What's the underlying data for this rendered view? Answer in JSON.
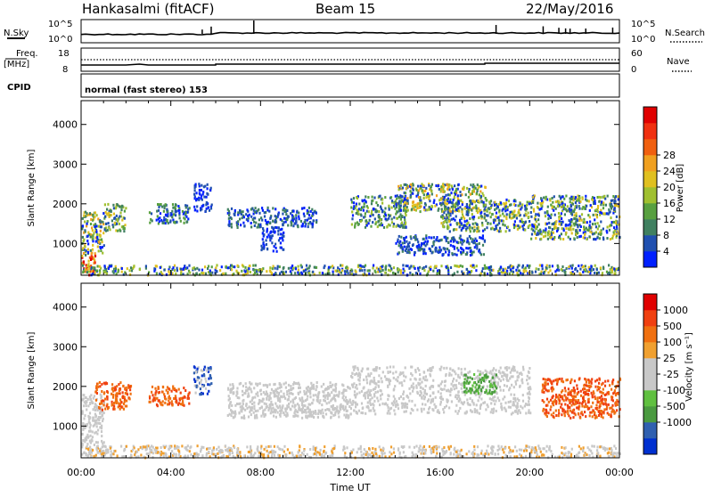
{
  "header": {
    "station": "Hankasalmi (fitACF)",
    "beam": "Beam 15",
    "date": "22/May/2016"
  },
  "top_panels": {
    "nsky_label": "N.Sky",
    "nsky_ticks": [
      "10^5",
      "10^0"
    ],
    "nsearch_label": "N.Search",
    "freq_label": "Freq.",
    "freq_unit": "[MHz]",
    "freq_ticks": [
      "18",
      "8"
    ],
    "nave_label": "Nave",
    "nave_ticks": [
      "60",
      "0"
    ],
    "cpid_label": "CPID",
    "cpid_text": "normal (fast stereo) 153"
  },
  "chart_data": [
    {
      "type": "heatmap",
      "name": "power",
      "ylabel": "Slant Range [km]",
      "xlabel": "",
      "x_ticks": [
        "00:00",
        "04:00",
        "08:00",
        "12:00",
        "16:00",
        "20:00",
        "00:00"
      ],
      "x_range_hours": [
        0,
        24
      ],
      "y_ticks": [
        "1000",
        "2000",
        "3000",
        "4000"
      ],
      "y_tick_values": [
        1000,
        2000,
        3000,
        4000
      ],
      "ylim": [
        200,
        4600
      ],
      "colorbar": {
        "label": "Power [dB]",
        "ticks": [
          "4",
          "8",
          "12",
          "16",
          "20",
          "24",
          "28"
        ],
        "colors": [
          "#0020ff",
          "#2050b0",
          "#408060",
          "#58a040",
          "#a0c030",
          "#e0c020",
          "#f0a020",
          "#f06010",
          "#f03010",
          "#e00000"
        ]
      },
      "scatter_regions": [
        {
          "t0": 0.0,
          "t1": 1.0,
          "r0": 700,
          "r1": 1800,
          "c": [
            0,
            1,
            2,
            3,
            4,
            5,
            6
          ]
        },
        {
          "t0": 0.0,
          "t1": 0.6,
          "r0": 200,
          "r1": 700,
          "c": [
            5,
            6,
            7,
            8,
            9
          ]
        },
        {
          "t0": 1.0,
          "t1": 2.0,
          "r0": 1300,
          "r1": 2000,
          "c": [
            1,
            2,
            3,
            4,
            5
          ]
        },
        {
          "t0": 3.0,
          "t1": 4.8,
          "r0": 1500,
          "r1": 2000,
          "c": [
            0,
            1,
            2,
            3
          ]
        },
        {
          "t0": 5.0,
          "t1": 5.8,
          "r0": 1800,
          "r1": 2500,
          "c": [
            0,
            1
          ]
        },
        {
          "t0": 6.5,
          "t1": 10.5,
          "r0": 1400,
          "r1": 1900,
          "c": [
            0,
            1,
            2
          ]
        },
        {
          "t0": 8.0,
          "t1": 9.0,
          "r0": 800,
          "r1": 1400,
          "c": [
            0,
            1
          ]
        },
        {
          "t0": 12.0,
          "t1": 14.5,
          "r0": 1400,
          "r1": 2200,
          "c": [
            0,
            1,
            2,
            3,
            4
          ]
        },
        {
          "t0": 14.0,
          "t1": 18.0,
          "r0": 1800,
          "r1": 2500,
          "c": [
            0,
            1,
            2,
            3,
            4,
            5,
            6
          ]
        },
        {
          "t0": 16.0,
          "t1": 20.0,
          "r0": 1300,
          "r1": 2100,
          "c": [
            0,
            1,
            2,
            3,
            4,
            5
          ]
        },
        {
          "t0": 20.0,
          "t1": 24.0,
          "r0": 1100,
          "r1": 2200,
          "c": [
            0,
            1,
            2,
            3,
            4,
            5
          ]
        },
        {
          "t0": 14.0,
          "t1": 18.0,
          "r0": 700,
          "r1": 1200,
          "c": [
            0,
            1,
            2
          ]
        },
        {
          "t0": 0.0,
          "t1": 24.0,
          "r0": 200,
          "r1": 450,
          "c": [
            0,
            1,
            2,
            3,
            4,
            5
          ]
        }
      ]
    },
    {
      "type": "heatmap",
      "name": "velocity",
      "ylabel": "Slant Range [km]",
      "xlabel": "Time UT",
      "x_ticks": [
        "00:00",
        "04:00",
        "08:00",
        "12:00",
        "16:00",
        "20:00",
        "00:00"
      ],
      "x_range_hours": [
        0,
        24
      ],
      "y_ticks": [
        "1000",
        "2000",
        "3000",
        "4000"
      ],
      "y_tick_values": [
        1000,
        2000,
        3000,
        4000
      ],
      "ylim": [
        200,
        4600
      ],
      "colorbar": {
        "label": "Velocity [m s⁻¹]",
        "ticks": [
          "1000",
          "500",
          "100",
          "25",
          "-25",
          "-100",
          "-500",
          "-1000"
        ],
        "colors": [
          "#0030d0",
          "#3060b0",
          "#4a9a40",
          "#60c040",
          "#c8c8c8",
          "#c8c8c8",
          "#f0a030",
          "#f07010",
          "#f04010",
          "#e00000"
        ]
      },
      "scatter_regions": [
        {
          "t0": 0.0,
          "t1": 1.0,
          "r0": 300,
          "r1": 1800,
          "c": [
            4,
            5
          ]
        },
        {
          "t0": 0.6,
          "t1": 2.2,
          "r0": 1400,
          "r1": 2100,
          "c": [
            7,
            8,
            7
          ]
        },
        {
          "t0": 3.0,
          "t1": 4.8,
          "r0": 1500,
          "r1": 2000,
          "c": [
            7,
            8
          ]
        },
        {
          "t0": 5.0,
          "t1": 5.8,
          "r0": 1800,
          "r1": 2500,
          "c": [
            0,
            1,
            4
          ]
        },
        {
          "t0": 6.5,
          "t1": 12.0,
          "r0": 1200,
          "r1": 2100,
          "c": [
            4,
            5
          ]
        },
        {
          "t0": 12.0,
          "t1": 20.0,
          "r0": 1300,
          "r1": 2500,
          "c": [
            4,
            5,
            4,
            5
          ]
        },
        {
          "t0": 17.0,
          "t1": 18.5,
          "r0": 1800,
          "r1": 2300,
          "c": [
            2,
            3
          ]
        },
        {
          "t0": 20.5,
          "t1": 24.0,
          "r0": 1200,
          "r1": 2200,
          "c": [
            7,
            8,
            7,
            8
          ]
        },
        {
          "t0": 0.0,
          "t1": 24.0,
          "r0": 200,
          "r1": 500,
          "c": [
            4,
            5,
            6
          ]
        }
      ]
    }
  ]
}
